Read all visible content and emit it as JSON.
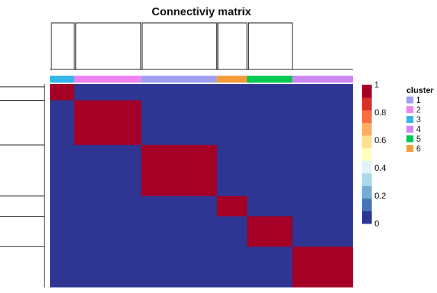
{
  "chart_data": {
    "type": "heatmap",
    "title": "Connectiviy matrix",
    "matrix_size": 100,
    "value_range": [
      0,
      1
    ],
    "clusters": [
      {
        "id": "3",
        "start": 0,
        "end": 8,
        "color": "#35B6EB"
      },
      {
        "id": "2",
        "start": 8,
        "end": 30,
        "color": "#EE82EE"
      },
      {
        "id": "1",
        "start": 30,
        "end": 55,
        "color": "#A0A0F0"
      },
      {
        "id": "6",
        "start": 55,
        "end": 65,
        "color": "#F39C3B"
      },
      {
        "id": "5",
        "start": 65,
        "end": 80,
        "color": "#00C853"
      },
      {
        "id": "4",
        "start": 80,
        "end": 100,
        "color": "#CC88F0"
      }
    ],
    "off_diagonal_value": 0,
    "within_cluster_value": 1,
    "color_scale": {
      "colors": [
        "#2E3592",
        "#4575B4",
        "#74ADD1",
        "#ABD9E9",
        "#E0F3F8",
        "#FFFFBF",
        "#FEE090",
        "#FDAE61",
        "#F46D43",
        "#D73027",
        "#A50026"
      ],
      "ticks": [
        "0",
        "0.2",
        "0.4",
        "0.6",
        "0.8",
        "1"
      ]
    },
    "legend": {
      "title": "cluster",
      "items": [
        {
          "label": "1",
          "color": "#A0A0F0"
        },
        {
          "label": "2",
          "color": "#EE82EE"
        },
        {
          "label": "3",
          "color": "#35B6EB"
        },
        {
          "label": "4",
          "color": "#CC88F0"
        },
        {
          "label": "5",
          "color": "#00C853"
        },
        {
          "label": "6",
          "color": "#F39C3B"
        }
      ]
    }
  }
}
